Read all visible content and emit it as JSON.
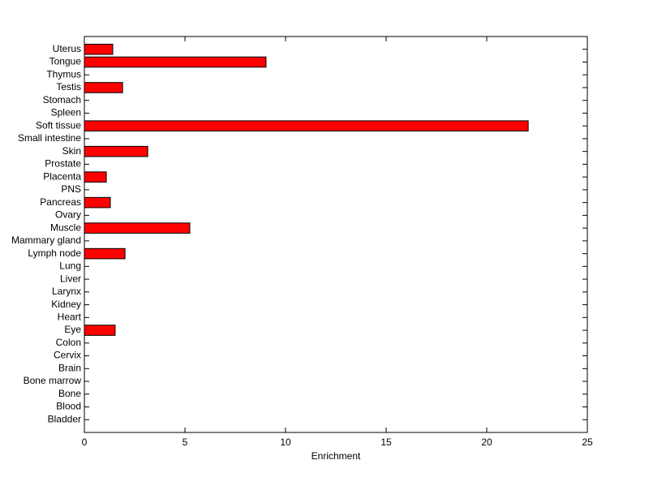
{
  "chart_data": {
    "type": "barh",
    "x_label": "Enrichment",
    "categories": [
      "Uterus",
      "Tongue",
      "Thymus",
      "Testis",
      "Stomach",
      "Spleen",
      "Soft tissue",
      "Small intestine",
      "Skin",
      "Prostate",
      "Placenta",
      "PNS",
      "Pancreas",
      "Ovary",
      "Muscle",
      "Mammary gland",
      "Lymph node",
      "Lung",
      "Liver",
      "Larynx",
      "Kidney",
      "Heart",
      "Eye",
      "Colon",
      "Cervix",
      "Brain",
      "Bone marrow",
      "Bone",
      "Blood",
      "Bladder"
    ],
    "values": [
      1.41,
      9.03,
      0,
      1.9,
      0,
      0,
      22.06,
      0,
      3.15,
      0,
      1.09,
      0,
      1.29,
      0,
      5.24,
      0,
      2.02,
      0,
      0,
      0,
      0,
      0,
      1.53,
      0,
      0,
      0,
      0,
      0,
      0,
      0
    ],
    "color": "#ff0000",
    "xlim": [
      0,
      25
    ],
    "xticks": [
      0,
      5,
      10,
      15,
      20,
      25
    ]
  }
}
